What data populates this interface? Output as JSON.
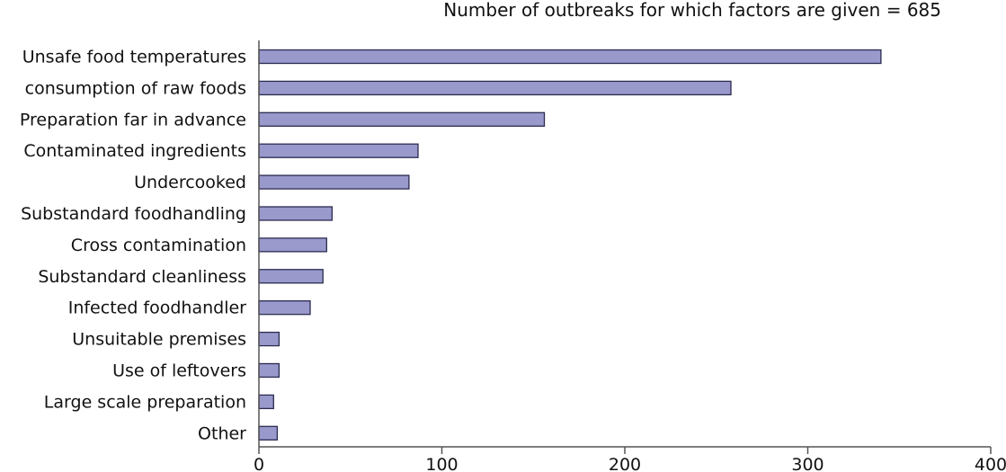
{
  "chart_data": {
    "type": "bar",
    "orientation": "horizontal",
    "title": "Number of outbreaks for which factors are given = 685",
    "xlabel": "",
    "ylabel": "",
    "categories": [
      "Unsafe food temperatures",
      "consumption of raw foods",
      "Preparation far in advance",
      "Contaminated ingredients",
      "Undercooked",
      "Substandard foodhandling",
      "Cross contamination",
      "Substandard cleanliness",
      "Infected foodhandler",
      "Unsuitable premises",
      "Use of leftovers",
      "Large scale preparation",
      "Other"
    ],
    "values": [
      340,
      258,
      156,
      87,
      82,
      40,
      37,
      35,
      28,
      11,
      11,
      8,
      10
    ],
    "xlim": [
      0,
      400
    ],
    "xticks": [
      0,
      100,
      200,
      300,
      400
    ],
    "grid": false,
    "legend": "none",
    "bar_color": "#9999cc",
    "bar_edge_color": "#2b2b50"
  }
}
